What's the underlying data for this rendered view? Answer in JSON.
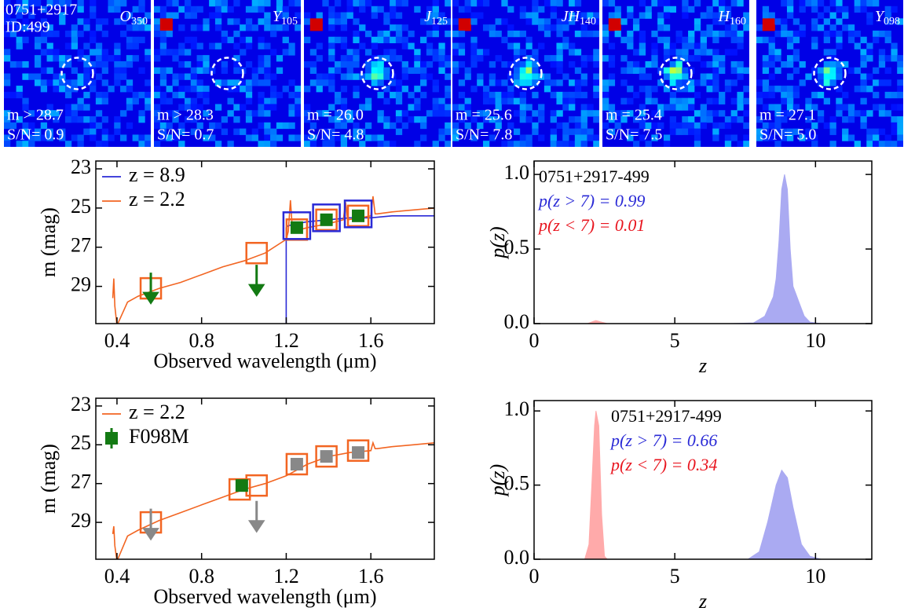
{
  "stamps": [
    {
      "filter": "O",
      "sub": "350",
      "field": "0751+2917",
      "id": "ID:499",
      "mag": "m > 28.7",
      "snr": "S/N= 0.9"
    },
    {
      "filter": "Y",
      "sub": "105",
      "mag": "m > 28.3",
      "snr": "S/N= 0.7"
    },
    {
      "filter": "J",
      "sub": "125",
      "mag": "m = 26.0",
      "snr": "S/N= 4.8"
    },
    {
      "filter": "JH",
      "sub": "140",
      "mag": "m = 25.6",
      "snr": "S/N= 7.8"
    },
    {
      "filter": "H",
      "sub": "160",
      "mag": "m = 25.4",
      "snr": "S/N= 7.5"
    },
    {
      "filter": "Y",
      "sub": "098",
      "mag": "m = 27.1",
      "snr": "S/N= 5.0"
    }
  ],
  "chart_data": [
    {
      "type": "sed",
      "xlabel": "Observed wavelength (μm)",
      "ylabel": "m (mag)",
      "xlim": [
        0.3,
        1.9
      ],
      "xticks": [
        0.4,
        0.8,
        1.2,
        1.6
      ],
      "ylim": [
        22.6,
        30.9
      ],
      "y_inverted": true,
      "yticks": [
        23,
        25,
        27,
        29
      ],
      "legend": "upper left",
      "series": [
        {
          "name": "z = 8.9",
          "color": "#2a2ad6",
          "x": [
            1.2,
            1.2,
            1.21,
            1.25,
            1.3,
            1.4,
            1.5,
            1.6,
            1.7,
            1.8,
            1.9
          ],
          "values": [
            31.5,
            26.0,
            25.9,
            25.8,
            25.7,
            25.6,
            25.5,
            25.5,
            25.4,
            25.4,
            25.4
          ]
        },
        {
          "name": "z = 2.2",
          "color": "#f26522",
          "x": [
            0.38,
            0.385,
            0.39,
            0.4,
            0.45,
            0.5,
            0.6,
            0.7,
            0.8,
            0.9,
            1.0,
            1.1,
            1.2,
            1.21,
            1.22,
            1.23,
            1.3,
            1.4,
            1.47,
            1.48,
            1.49,
            1.55,
            1.6,
            1.61,
            1.62,
            1.63,
            1.7,
            1.8,
            1.9
          ],
          "values": [
            29.6,
            28.6,
            30.0,
            31.0,
            29.8,
            29.5,
            29.1,
            28.8,
            28.4,
            28.0,
            27.7,
            27.3,
            26.6,
            26.2,
            24.6,
            26.2,
            26.0,
            25.8,
            25.6,
            24.7,
            25.6,
            25.5,
            25.4,
            24.4,
            25.3,
            25.3,
            25.2,
            25.1,
            25.0
          ]
        }
      ],
      "model_points": [
        {
          "color": "#f26522",
          "x": [
            0.56,
            1.06,
            1.25,
            1.39,
            1.54
          ],
          "values": [
            29.1,
            27.3,
            26.1,
            25.6,
            25.4
          ]
        },
        {
          "color": "#2a2ad6",
          "x": [
            1.25,
            1.39,
            1.54
          ],
          "values": [
            25.9,
            25.5,
            25.3
          ]
        }
      ],
      "observed": [
        {
          "color": "#137a13",
          "x": [
            1.25,
            1.39,
            1.54
          ],
          "values": [
            26.0,
            25.6,
            25.4
          ]
        }
      ],
      "upper_limits": {
        "color": "#137a13",
        "x": [
          0.56,
          1.06
        ],
        "values": [
          28.7,
          28.3
        ]
      }
    },
    {
      "type": "pz",
      "xlabel": "z",
      "ylabel": "p(z)",
      "xlim": [
        0,
        12
      ],
      "xticks": [
        0,
        5,
        10
      ],
      "ylim": [
        0,
        1.09
      ],
      "yticks": [
        {
          "value": 0,
          "label": "0.0"
        },
        {
          "value": 0.5,
          "label": "0.5"
        },
        {
          "value": 1,
          "label": "1.0"
        }
      ],
      "annotation_loc": "upper left",
      "annotations": [
        {
          "text": "0751+2917-499",
          "color": "#000000"
        },
        {
          "text": "p(z > 7) = 0.99",
          "color": "#2a2ad6"
        },
        {
          "text": "p(z < 7) = 0.01",
          "color": "#e8141e"
        }
      ],
      "series": [
        {
          "color": "#ffaaaa",
          "x": [
            0,
            1.9,
            2.1,
            2.2,
            2.4,
            2.6,
            7.0
          ],
          "values": [
            0,
            0,
            0.015,
            0.02,
            0.01,
            0,
            0
          ]
        },
        {
          "color": "#aaaaf2",
          "x": [
            7.0,
            7.8,
            8.2,
            8.5,
            8.6,
            8.7,
            8.8,
            8.9,
            9.0,
            9.1,
            9.2,
            9.3,
            9.4,
            9.6,
            9.8,
            10.2
          ],
          "values": [
            0,
            0.005,
            0.05,
            0.18,
            0.3,
            0.55,
            0.9,
            1.0,
            0.9,
            0.5,
            0.25,
            0.2,
            0.15,
            0.05,
            0.01,
            0
          ]
        }
      ]
    },
    {
      "type": "sed",
      "xlabel": "Observed wavelength (μm)",
      "ylabel": "m (mag)",
      "xlim": [
        0.3,
        1.9
      ],
      "xticks": [
        0.4,
        0.8,
        1.2,
        1.6
      ],
      "ylim": [
        22.6,
        30.9
      ],
      "y_inverted": true,
      "yticks": [
        23,
        25,
        27,
        29
      ],
      "legend": "upper left",
      "series": [
        {
          "name": "z = 2.2",
          "color": "#f26522",
          "x": [
            0.38,
            0.385,
            0.39,
            0.4,
            0.45,
            0.5,
            0.6,
            0.7,
            0.8,
            0.9,
            1.0,
            1.1,
            1.2,
            1.3,
            1.4,
            1.5,
            1.6,
            1.61,
            1.62,
            1.63,
            1.7,
            1.8,
            1.9
          ],
          "values": [
            29.6,
            29.2,
            30.2,
            31.0,
            29.7,
            29.4,
            28.9,
            28.5,
            28.1,
            27.7,
            27.3,
            27.0,
            26.6,
            26.0,
            25.6,
            25.4,
            25.3,
            24.9,
            25.2,
            25.2,
            25.1,
            25.0,
            24.9
          ]
        }
      ],
      "model_points": [
        {
          "color": "#f26522",
          "x": [
            0.56,
            0.98,
            1.06,
            1.25,
            1.39,
            1.54
          ],
          "values": [
            29.0,
            27.3,
            27.1,
            26.0,
            25.6,
            25.3
          ]
        }
      ],
      "observed": [
        {
          "name": "F098M",
          "color": "#137a13",
          "x": [
            0.99
          ],
          "values": [
            27.1
          ],
          "errors": [
            0.15
          ]
        },
        {
          "color": "#888888",
          "x": [
            1.25,
            1.39,
            1.54
          ],
          "values": [
            26.0,
            25.6,
            25.4
          ]
        }
      ],
      "upper_limits": {
        "color": "#888888",
        "x": [
          0.56,
          1.06
        ],
        "values": [
          28.7,
          28.3
        ]
      }
    },
    {
      "type": "pz",
      "xlabel": "z",
      "ylabel": "p(z)",
      "xlim": [
        0,
        12
      ],
      "xticks": [
        0,
        5,
        10
      ],
      "ylim": [
        0,
        1.07
      ],
      "yticks": [
        {
          "value": 0,
          "label": "0.0"
        },
        {
          "value": 0.5,
          "label": "0.5"
        },
        {
          "value": 1,
          "label": "1.0"
        }
      ],
      "annotation_loc": "upper center",
      "annotations": [
        {
          "text": "0751+2917-499",
          "color": "#000000"
        },
        {
          "text": "p(z > 7) = 0.66",
          "color": "#2a2ad6"
        },
        {
          "text": "p(z < 7) = 0.34",
          "color": "#e8141e"
        }
      ],
      "series": [
        {
          "color": "#ffaaaa",
          "x": [
            0,
            1.8,
            1.95,
            2.05,
            2.15,
            2.2,
            2.3,
            2.4,
            2.5,
            2.6,
            7.0
          ],
          "values": [
            0,
            0,
            0.1,
            0.5,
            0.9,
            1.0,
            0.9,
            0.3,
            0.02,
            0,
            0
          ]
        },
        {
          "color": "#aaaaf2",
          "x": [
            7.0,
            7.6,
            8.0,
            8.3,
            8.6,
            8.8,
            9.0,
            9.2,
            9.5,
            9.8,
            10.2,
            12
          ],
          "values": [
            0,
            0,
            0.05,
            0.25,
            0.5,
            0.6,
            0.55,
            0.35,
            0.1,
            0.02,
            0,
            0
          ]
        }
      ]
    }
  ]
}
